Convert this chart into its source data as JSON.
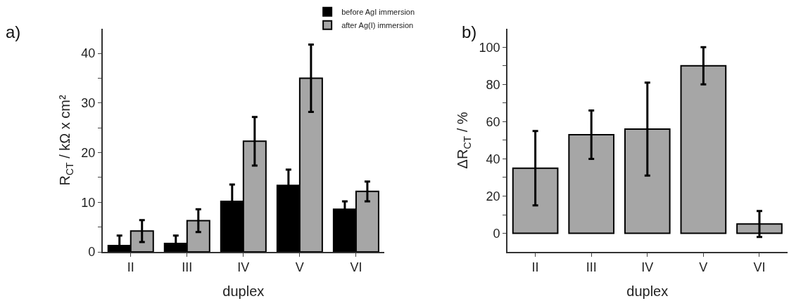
{
  "chart_data": [
    {
      "type": "bar",
      "title": "a)",
      "xlabel": "duplex",
      "ylabel": "R$_{CT}$ / kΩ x cm²",
      "categories": [
        "II",
        "III",
        "IV",
        "V",
        "VI"
      ],
      "series": [
        {
          "name": "before AgI immersion",
          "color": "#000000",
          "values": [
            1.3,
            1.7,
            10.2,
            13.4,
            8.6
          ],
          "errors": [
            2.0,
            1.6,
            3.4,
            3.2,
            1.6
          ]
        },
        {
          "name": "after Ag(I) immersion",
          "color": "#a6a6a6",
          "values": [
            4.2,
            6.3,
            22.3,
            35.0,
            12.2
          ],
          "errors": [
            2.2,
            2.3,
            4.9,
            6.8,
            2.0
          ]
        }
      ],
      "ylim": [
        0,
        45
      ],
      "yticks": [
        0,
        {
          "value": 5,
          "label": null
        },
        10,
        {
          "value": 15,
          "label": null
        },
        20,
        {
          "value": 25,
          "label": null
        },
        30,
        {
          "value": 35,
          "label": null
        },
        40
      ],
      "legend": "top right"
    },
    {
      "type": "bar",
      "title": "b)",
      "xlabel": "duplex",
      "ylabel": "ΔR$_{CT}$ / %",
      "categories": [
        "II",
        "III",
        "IV",
        "V",
        "VI"
      ],
      "series": [
        {
          "color": "#a6a6a6",
          "values": [
            35,
            53,
            56,
            90,
            5
          ],
          "errors": [
            20,
            13,
            25,
            10,
            7
          ]
        }
      ],
      "ylim": [
        -10,
        110
      ],
      "yticks": [
        0,
        {
          "value": 10,
          "label": null
        },
        20,
        {
          "value": 30,
          "label": null
        },
        40,
        {
          "value": 50,
          "label": null
        },
        60,
        {
          "value": 70,
          "label": null
        },
        80,
        {
          "value": 90,
          "label": null
        },
        100
      ]
    }
  ]
}
